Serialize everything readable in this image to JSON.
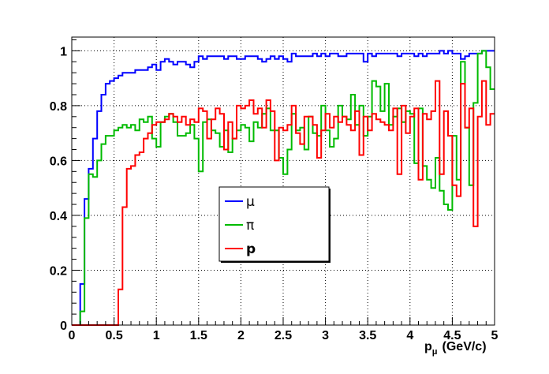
{
  "chart_data": {
    "type": "line",
    "style": "step",
    "xlabel_main": "p",
    "xlabel_sub": "μ",
    "xlabel_unit": "(GeV/c)",
    "ylabel": "",
    "xlim": [
      0,
      5
    ],
    "ylim": [
      0,
      1.05
    ],
    "grid": true,
    "legend_placement": "center",
    "x_ticks": [
      0,
      0.5,
      1,
      1.5,
      2,
      2.5,
      3,
      3.5,
      4,
      4.5,
      5
    ],
    "x_tick_labels": [
      "0",
      "0.5",
      "1",
      "1.5",
      "2",
      "2.5",
      "3",
      "3.5",
      "4",
      "4.5",
      "5"
    ],
    "y_ticks": [
      0,
      0.2,
      0.4,
      0.6,
      0.8,
      1
    ],
    "y_tick_labels": [
      "0",
      "0.2",
      "0.4",
      "0.6",
      "0.8",
      "1"
    ],
    "bin_width": 0.05,
    "series": [
      {
        "name": "μ",
        "color": "#0000ff",
        "values": [
          0.0,
          0.0,
          0.15,
          0.46,
          0.57,
          0.68,
          0.78,
          0.84,
          0.88,
          0.89,
          0.9,
          0.91,
          0.92,
          0.92,
          0.92,
          0.93,
          0.93,
          0.93,
          0.94,
          0.95,
          0.93,
          0.96,
          0.97,
          0.96,
          0.95,
          0.96,
          0.96,
          0.95,
          0.94,
          0.96,
          0.98,
          0.97,
          0.98,
          0.98,
          0.98,
          0.98,
          0.97,
          0.98,
          0.98,
          0.97,
          0.97,
          0.98,
          0.98,
          0.98,
          0.97,
          0.96,
          0.97,
          0.98,
          0.97,
          0.98,
          0.97,
          0.96,
          0.99,
          0.98,
          0.98,
          0.98,
          0.98,
          0.99,
          0.98,
          0.99,
          0.98,
          0.99,
          0.99,
          0.98,
          0.98,
          0.99,
          0.99,
          0.99,
          0.99,
          0.96,
          0.99,
          0.98,
          0.99,
          0.99,
          0.99,
          0.99,
          0.99,
          0.98,
          0.99,
          0.99,
          0.99,
          0.98,
          0.99,
          0.98,
          0.99,
          0.99,
          0.99,
          1.0,
          0.99,
          1.0,
          0.99,
          0.99,
          0.97,
          0.98,
          0.99,
          0.99,
          0.99,
          1.0,
          1.0,
          1.0
        ]
      },
      {
        "name": "π",
        "color": "#00bb00",
        "values": [
          0.0,
          0.0,
          0.05,
          0.39,
          0.55,
          0.54,
          0.6,
          0.66,
          0.69,
          0.69,
          0.71,
          0.72,
          0.73,
          0.72,
          0.73,
          0.71,
          0.75,
          0.74,
          0.76,
          0.68,
          0.65,
          0.74,
          0.76,
          0.77,
          0.74,
          0.69,
          0.69,
          0.7,
          0.73,
          0.68,
          0.56,
          0.74,
          0.75,
          0.71,
          0.7,
          0.65,
          0.71,
          0.63,
          0.68,
          0.71,
          0.73,
          0.72,
          0.67,
          0.74,
          0.72,
          0.77,
          0.79,
          0.71,
          0.71,
          0.61,
          0.55,
          0.64,
          0.77,
          0.71,
          0.72,
          0.64,
          0.76,
          0.7,
          0.69,
          0.8,
          0.71,
          0.65,
          0.68,
          0.8,
          0.76,
          0.75,
          0.84,
          0.73,
          0.8,
          0.69,
          0.76,
          0.89,
          0.87,
          0.78,
          0.88,
          0.73,
          0.76,
          0.79,
          0.74,
          0.78,
          0.77,
          0.59,
          0.79,
          0.58,
          0.53,
          0.5,
          0.61,
          0.49,
          0.44,
          0.42,
          0.69,
          0.53,
          0.96,
          0.72,
          0.51,
          0.81,
          0.99,
          1.0,
          0.94,
          0.86
        ]
      },
      {
        "name": "p",
        "color": "#ff0000",
        "values": [
          0.0,
          0.0,
          0.0,
          0.0,
          0.0,
          0.0,
          0.0,
          0.0,
          0.0,
          0.0,
          0.0,
          0.13,
          0.43,
          0.57,
          0.58,
          0.62,
          0.63,
          0.68,
          0.7,
          0.73,
          0.74,
          0.74,
          0.75,
          0.77,
          0.76,
          0.74,
          0.76,
          0.73,
          0.75,
          0.74,
          0.79,
          0.78,
          0.68,
          0.75,
          0.79,
          0.77,
          0.64,
          0.74,
          0.68,
          0.8,
          0.79,
          0.8,
          0.82,
          0.77,
          0.79,
          0.72,
          0.82,
          0.78,
          0.6,
          0.72,
          0.71,
          0.73,
          0.8,
          0.7,
          0.66,
          0.76,
          0.76,
          0.73,
          0.61,
          0.71,
          0.77,
          0.72,
          0.76,
          0.74,
          0.76,
          0.73,
          0.71,
          0.78,
          0.62,
          0.76,
          0.71,
          0.77,
          0.75,
          0.74,
          0.73,
          0.71,
          0.79,
          0.55,
          0.8,
          0.7,
          0.76,
          0.79,
          0.53,
          0.77,
          0.75,
          0.78,
          0.89,
          0.55,
          0.78,
          0.69,
          0.51,
          0.47,
          0.88,
          0.72,
          0.79,
          0.36,
          0.76,
          0.89,
          0.73,
          0.77
        ]
      }
    ]
  }
}
